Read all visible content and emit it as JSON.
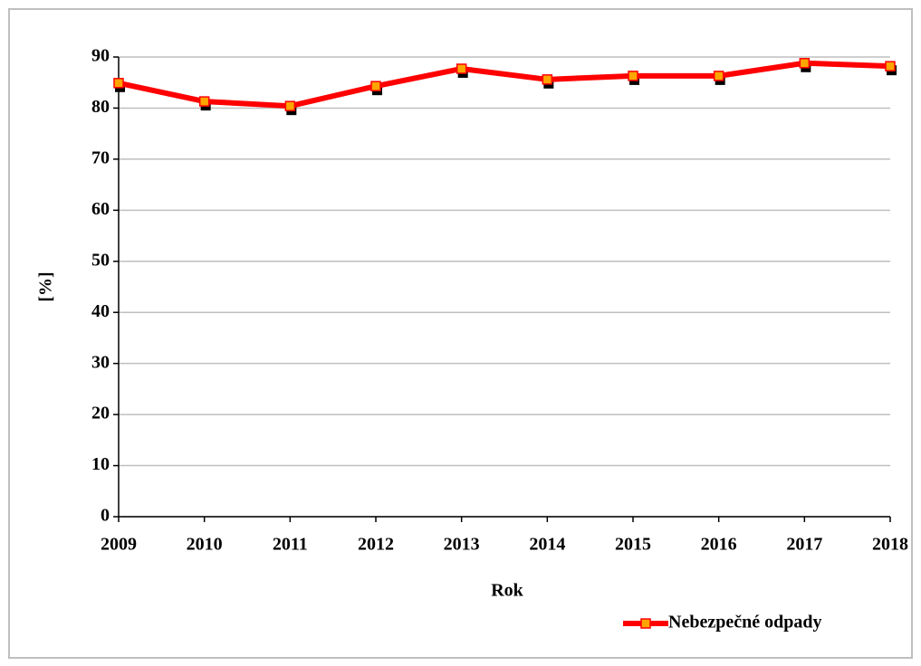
{
  "chart_data": {
    "type": "line",
    "x_label": "Rok",
    "y_label": "[%]",
    "categories": [
      "2009",
      "2010",
      "2011",
      "2012",
      "2013",
      "2014",
      "2015",
      "2016",
      "2017",
      "2018"
    ],
    "series": [
      {
        "name": "Nebezpečné odpady",
        "color": "#ff0000",
        "marker_color": "#ffa500",
        "values": [
          84.9,
          81.3,
          80.4,
          84.3,
          87.7,
          85.6,
          86.3,
          86.3,
          88.8,
          88.2
        ]
      }
    ],
    "ylim": [
      0,
      90
    ],
    "yticks": [
      0,
      10,
      20,
      30,
      40,
      50,
      60,
      70,
      80,
      90
    ],
    "grid": true,
    "legend": "bottom-right"
  }
}
